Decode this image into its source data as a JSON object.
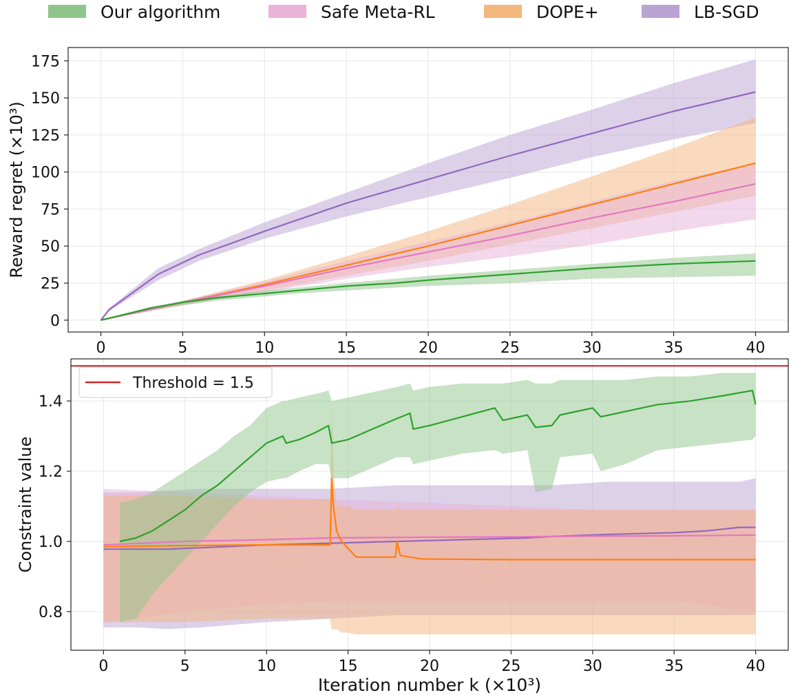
{
  "legend": [
    {
      "label": "Our algorithm",
      "color": "#8fc58a"
    },
    {
      "label": "Safe Meta-RL",
      "color": "#e8b2d9"
    },
    {
      "label": "DOPE+",
      "color": "#f3b67d"
    },
    {
      "label": "LB-SGD",
      "color": "#b9a3d3"
    }
  ],
  "chart_data": [
    {
      "type": "line",
      "xlabel": "",
      "ylabel": "Reward regret (×10³)",
      "xlim": [
        -2,
        42
      ],
      "ylim": [
        -8,
        184
      ],
      "x_ticks": [
        0,
        5,
        10,
        15,
        20,
        25,
        30,
        35,
        40
      ],
      "y_ticks": [
        0,
        25,
        50,
        75,
        100,
        125,
        150,
        175
      ],
      "grid": true,
      "series": [
        {
          "name": "LB-SGD",
          "color": "#9467bd",
          "band_color": "#b9a3d3",
          "x": [
            0,
            0.5,
            3.5,
            6,
            10,
            15,
            20,
            25,
            30,
            35,
            40
          ],
          "y": [
            0,
            7,
            31,
            44,
            60,
            79,
            95,
            111,
            126,
            141,
            154
          ],
          "lower": [
            0,
            6,
            27,
            40,
            55,
            70,
            83,
            96,
            110,
            122,
            133
          ],
          "upper": [
            0,
            8,
            35,
            48,
            66,
            86,
            106,
            125,
            142,
            160,
            176
          ]
        },
        {
          "name": "DOPE+",
          "color": "#ff7f0e",
          "band_color": "#f3b67d",
          "x": [
            0,
            5,
            10,
            15,
            20,
            25,
            30,
            35,
            40
          ],
          "y": [
            0,
            12,
            24,
            37,
            50,
            64,
            78,
            92,
            106
          ],
          "lower": [
            0,
            10,
            20,
            30,
            40,
            51,
            62,
            73,
            84
          ],
          "upper": [
            0,
            13,
            27,
            43,
            60,
            78,
            97,
            116,
            137
          ]
        },
        {
          "name": "Safe Meta-RL",
          "color": "#e377c2",
          "band_color": "#e8b2d9",
          "x": [
            0,
            5,
            10,
            15,
            20,
            25,
            30,
            35,
            40
          ],
          "y": [
            0,
            12,
            23,
            35,
            46,
            57,
            69,
            80,
            92
          ],
          "lower": [
            0,
            10,
            19,
            28,
            36,
            43,
            51,
            60,
            68
          ],
          "upper": [
            0,
            13,
            26,
            40,
            53,
            66,
            80,
            94,
            106
          ]
        },
        {
          "name": "Our algorithm",
          "color": "#2ca02c",
          "band_color": "#8fc58a",
          "x": [
            0,
            3,
            5,
            7,
            10,
            12,
            15,
            18,
            20,
            25,
            30,
            35,
            40
          ],
          "y": [
            0,
            8,
            12,
            15,
            18,
            20,
            23,
            25,
            27,
            31,
            35,
            38,
            40
          ],
          "lower": [
            0,
            7,
            10,
            13,
            16,
            18,
            20,
            22,
            23,
            25,
            28,
            29,
            30
          ],
          "upper": [
            0,
            9,
            13,
            16,
            20,
            22,
            25,
            28,
            30,
            34,
            38,
            42,
            45
          ]
        }
      ]
    },
    {
      "type": "line",
      "xlabel": "Iteration number k (×10³)",
      "ylabel": "Constraint value",
      "xlim": [
        -2,
        42
      ],
      "ylim": [
        0.69,
        1.52
      ],
      "x_ticks": [
        0,
        5,
        10,
        15,
        20,
        25,
        30,
        35,
        40
      ],
      "y_ticks": [
        0.8,
        1.0,
        1.2,
        1.4
      ],
      "grid": true,
      "threshold": {
        "label": "Threshold = 1.5",
        "value": 1.5,
        "color": "#d62728"
      },
      "series": [
        {
          "name": "LB-SGD",
          "color": "#9467bd",
          "band_color": "#b9a3d3",
          "x": [
            0,
            2,
            4,
            6,
            10,
            14,
            18,
            22,
            26,
            27.5,
            31,
            35,
            37,
            39,
            40
          ],
          "y": [
            0.978,
            0.978,
            0.978,
            0.982,
            0.99,
            0.995,
            1.0,
            1.005,
            1.01,
            1.014,
            1.02,
            1.025,
            1.03,
            1.04,
            1.04
          ],
          "lower": [
            0.755,
            0.755,
            0.75,
            0.755,
            0.77,
            0.78,
            0.79,
            0.79,
            0.79,
            0.79,
            0.79,
            0.79,
            0.79,
            0.79,
            0.79
          ],
          "upper": [
            1.14,
            1.14,
            1.145,
            1.15,
            1.15,
            1.15,
            1.16,
            1.16,
            1.16,
            1.16,
            1.17,
            1.17,
            1.17,
            1.17,
            1.18
          ]
        },
        {
          "name": "Safe Meta-RL",
          "color": "#e377c2",
          "band_color": "#e8b2d9",
          "x": [
            0,
            5,
            10,
            14,
            20,
            25,
            30,
            35,
            40
          ],
          "y": [
            0.99,
            1.0,
            1.005,
            1.01,
            1.012,
            1.013,
            1.015,
            1.016,
            1.018
          ],
          "lower": [
            0.77,
            0.8,
            0.82,
            0.83,
            0.83,
            0.83,
            0.83,
            0.83,
            0.8
          ],
          "upper": [
            1.15,
            1.14,
            1.13,
            1.12,
            1.11,
            1.1,
            1.09,
            1.09,
            1.09
          ]
        },
        {
          "name": "DOPE+",
          "color": "#ff7f0e",
          "band_color": "#f3b67d",
          "x": [
            0,
            5,
            10,
            13.9,
            14.0,
            14.1,
            14.3,
            14.6,
            15,
            15.5,
            17.9,
            18.0,
            18.2,
            19.5,
            25,
            30,
            35,
            40
          ],
          "y": [
            0.985,
            0.988,
            0.99,
            0.99,
            1.18,
            1.1,
            1.03,
            1.0,
            0.98,
            0.955,
            0.955,
            1.0,
            0.96,
            0.95,
            0.948,
            0.948,
            0.948,
            0.948
          ],
          "lower": [
            0.77,
            0.77,
            0.78,
            0.78,
            0.75,
            0.75,
            0.75,
            0.74,
            0.74,
            0.735,
            0.735,
            0.735,
            0.735,
            0.735,
            0.735,
            0.735,
            0.735,
            0.735
          ],
          "upper": [
            1.13,
            1.13,
            1.12,
            1.12,
            1.38,
            1.2,
            1.1,
            1.1,
            1.1,
            1.09,
            1.09,
            1.1,
            1.09,
            1.09,
            1.09,
            1.09,
            1.09,
            1.09
          ]
        },
        {
          "name": "Our algorithm",
          "color": "#2ca02c",
          "band_color": "#8fc58a",
          "x": [
            1,
            2,
            3,
            4,
            5,
            6,
            7,
            8,
            9,
            10,
            11,
            11.2,
            12,
            13,
            13.8,
            14,
            15,
            16,
            17,
            18,
            18.8,
            19,
            20,
            22,
            24,
            24.5,
            26,
            26.5,
            27.5,
            28,
            30,
            30.5,
            32,
            34,
            36,
            38,
            39.8,
            40
          ],
          "y": [
            1.0,
            1.01,
            1.03,
            1.06,
            1.09,
            1.13,
            1.16,
            1.2,
            1.24,
            1.28,
            1.3,
            1.28,
            1.29,
            1.31,
            1.33,
            1.28,
            1.29,
            1.31,
            1.33,
            1.35,
            1.365,
            1.32,
            1.33,
            1.355,
            1.38,
            1.345,
            1.36,
            1.325,
            1.33,
            1.36,
            1.38,
            1.355,
            1.37,
            1.39,
            1.4,
            1.415,
            1.43,
            1.39
          ],
          "lower": [
            0.77,
            0.78,
            0.85,
            0.9,
            0.95,
            1.0,
            1.05,
            1.1,
            1.14,
            1.17,
            1.18,
            1.18,
            1.2,
            1.22,
            1.22,
            1.18,
            1.18,
            1.2,
            1.22,
            1.24,
            1.24,
            1.22,
            1.23,
            1.25,
            1.26,
            1.25,
            1.26,
            1.14,
            1.15,
            1.24,
            1.25,
            1.2,
            1.22,
            1.26,
            1.27,
            1.28,
            1.29,
            1.3
          ],
          "upper": [
            1.11,
            1.12,
            1.14,
            1.17,
            1.2,
            1.23,
            1.26,
            1.3,
            1.33,
            1.38,
            1.4,
            1.4,
            1.41,
            1.42,
            1.43,
            1.4,
            1.41,
            1.42,
            1.43,
            1.44,
            1.45,
            1.43,
            1.44,
            1.45,
            1.45,
            1.45,
            1.46,
            1.45,
            1.45,
            1.46,
            1.46,
            1.46,
            1.46,
            1.47,
            1.47,
            1.48,
            1.48,
            1.48
          ]
        }
      ]
    }
  ]
}
